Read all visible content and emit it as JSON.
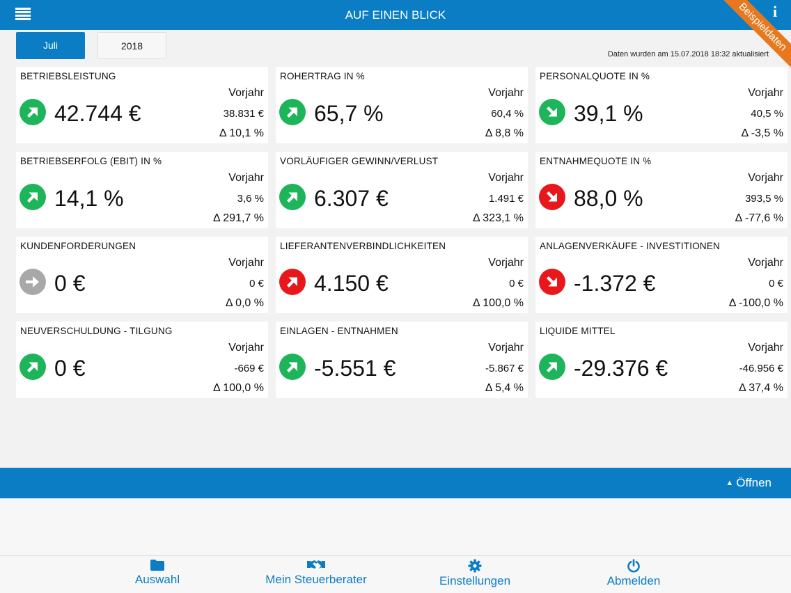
{
  "header": {
    "title": "AUF EINEN BLICK",
    "badge": "Beispieldaten"
  },
  "tabs": [
    {
      "label": "Juli"
    },
    {
      "label": "2018"
    }
  ],
  "updated_text": "Daten wurden am 15.07.2018 18:32 aktualisiert",
  "kpis": [
    {
      "title": "BETRIEBSLEISTUNG",
      "value": "42.744 €",
      "vorjahr_label": "Vorjahr",
      "prev": "38.831 €",
      "delta": "Δ 10,1 %",
      "trend": "up",
      "color": "green"
    },
    {
      "title": "ROHERTRAG IN %",
      "value": "65,7 %",
      "vorjahr_label": "Vorjahr",
      "prev": "60,4 %",
      "delta": "Δ 8,8 %",
      "trend": "up",
      "color": "green"
    },
    {
      "title": "PERSONALQUOTE IN %",
      "value": "39,1 %",
      "vorjahr_label": "Vorjahr",
      "prev": "40,5 %",
      "delta": "Δ -3,5 %",
      "trend": "down",
      "color": "green"
    },
    {
      "title": "BETRIEBSERFOLG (EBIT) IN %",
      "value": "14,1 %",
      "vorjahr_label": "Vorjahr",
      "prev": "3,6 %",
      "delta": "Δ 291,7 %",
      "trend": "up",
      "color": "green"
    },
    {
      "title": "VORLÄUFIGER GEWINN/VERLUST",
      "value": "6.307 €",
      "vorjahr_label": "Vorjahr",
      "prev": "1.491 €",
      "delta": "Δ 323,1 %",
      "trend": "up",
      "color": "green"
    },
    {
      "title": "ENTNAHMEQUOTE IN %",
      "value": "88,0 %",
      "vorjahr_label": "Vorjahr",
      "prev": "393,5 %",
      "delta": "Δ -77,6 %",
      "trend": "down",
      "color": "red"
    },
    {
      "title": "KUNDENFORDERUNGEN",
      "value": "0 €",
      "vorjahr_label": "Vorjahr",
      "prev": "0 €",
      "delta": "Δ 0,0 %",
      "trend": "flat",
      "color": "grey"
    },
    {
      "title": "LIEFERANTENVERBINDLICHKEITEN",
      "value": "4.150 €",
      "vorjahr_label": "Vorjahr",
      "prev": "0 €",
      "delta": "Δ 100,0 %",
      "trend": "up",
      "color": "red"
    },
    {
      "title": "ANLAGENVERKÄUFE - INVESTITIONEN",
      "value": "-1.372 €",
      "vorjahr_label": "Vorjahr",
      "prev": "0 €",
      "delta": "Δ -100,0 %",
      "trend": "down",
      "color": "red"
    },
    {
      "title": "NEUVERSCHULDUNG - TILGUNG",
      "value": "0 €",
      "vorjahr_label": "Vorjahr",
      "prev": "-669 €",
      "delta": "Δ 100,0 %",
      "trend": "up",
      "color": "green"
    },
    {
      "title": "EINLAGEN - ENTNAHMEN",
      "value": "-5.551 €",
      "vorjahr_label": "Vorjahr",
      "prev": "-5.867 €",
      "delta": "Δ 5,4 %",
      "trend": "up",
      "color": "green"
    },
    {
      "title": "LIQUIDE MITTEL",
      "value": "-29.376 €",
      "vorjahr_label": "Vorjahr",
      "prev": "-46.956 €",
      "delta": "Δ 37,4 %",
      "trend": "up",
      "color": "green"
    }
  ],
  "drawer": {
    "open_label": "Öffnen"
  },
  "bottom_nav": [
    {
      "label": "Auswahl",
      "icon": "folder-icon"
    },
    {
      "label": "Mein Steuerberater",
      "icon": "handshake-icon"
    },
    {
      "label": "Einstellungen",
      "icon": "gear-icon"
    },
    {
      "label": "Abmelden",
      "icon": "power-icon"
    }
  ],
  "colors": {
    "primary": "#0a7dc5",
    "green": "#1db45a",
    "red": "#e8171b",
    "grey": "#a8a8a8",
    "ribbon": "#e8781e"
  }
}
